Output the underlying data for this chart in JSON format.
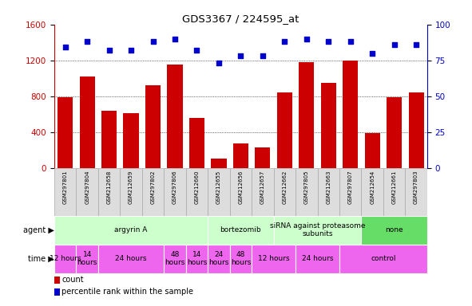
{
  "title": "GDS3367 / 224595_at",
  "samples": [
    "GSM297801",
    "GSM297804",
    "GSM212658",
    "GSM212659",
    "GSM297802",
    "GSM297806",
    "GSM212660",
    "GSM212655",
    "GSM212656",
    "GSM212657",
    "GSM212662",
    "GSM297805",
    "GSM212663",
    "GSM297807",
    "GSM212654",
    "GSM212661",
    "GSM297803"
  ],
  "counts": [
    790,
    1020,
    640,
    610,
    920,
    1150,
    560,
    100,
    270,
    230,
    840,
    1180,
    950,
    1200,
    390,
    790,
    840
  ],
  "percentiles": [
    84,
    88,
    82,
    82,
    88,
    90,
    82,
    73,
    78,
    78,
    88,
    90,
    88,
    88,
    80,
    86,
    86
  ],
  "ylim_left": [
    0,
    1600
  ],
  "ylim_right": [
    0,
    100
  ],
  "yticks_left": [
    0,
    400,
    800,
    1200,
    1600
  ],
  "yticks_right": [
    0,
    25,
    50,
    75,
    100
  ],
  "bar_color": "#cc0000",
  "dot_color": "#0000cc",
  "agent_groups": [
    {
      "label": "argyrin A",
      "start": 0,
      "end": 7,
      "color": "#ccffcc"
    },
    {
      "label": "bortezomib",
      "start": 7,
      "end": 10,
      "color": "#ccffcc"
    },
    {
      "label": "siRNA against proteasome\nsubunits",
      "start": 10,
      "end": 14,
      "color": "#ccffcc"
    },
    {
      "label": "none",
      "start": 14,
      "end": 17,
      "color": "#66dd66"
    }
  ],
  "time_groups": [
    {
      "label": "12 hours",
      "start": 0,
      "end": 1,
      "color": "#ee66ee"
    },
    {
      "label": "14\nhours",
      "start": 1,
      "end": 2,
      "color": "#ee66ee"
    },
    {
      "label": "24 hours",
      "start": 2,
      "end": 5,
      "color": "#ee66ee"
    },
    {
      "label": "48\nhours",
      "start": 5,
      "end": 6,
      "color": "#ee66ee"
    },
    {
      "label": "14\nhours",
      "start": 6,
      "end": 7,
      "color": "#ee66ee"
    },
    {
      "label": "24\nhours",
      "start": 7,
      "end": 8,
      "color": "#ee66ee"
    },
    {
      "label": "48\nhours",
      "start": 8,
      "end": 9,
      "color": "#ee66ee"
    },
    {
      "label": "12 hours",
      "start": 9,
      "end": 11,
      "color": "#ee66ee"
    },
    {
      "label": "24 hours",
      "start": 11,
      "end": 13,
      "color": "#ee66ee"
    },
    {
      "label": "control",
      "start": 13,
      "end": 17,
      "color": "#ee66ee"
    }
  ],
  "agent_label": "agent",
  "time_label": "time",
  "legend_count_color": "#cc0000",
  "legend_dot_color": "#0000cc",
  "background_color": "#ffffff",
  "sample_bg_color": "#dddddd",
  "sample_sep_color": "#aaaaaa"
}
